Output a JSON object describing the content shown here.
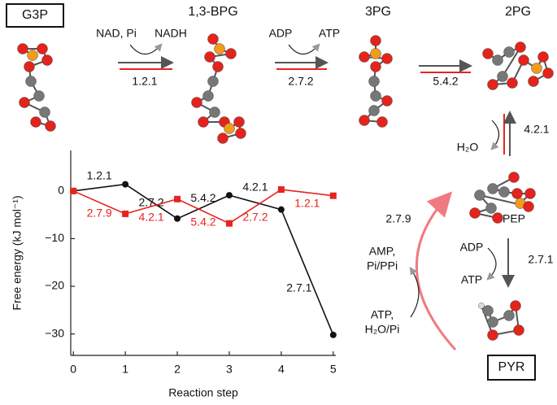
{
  "chart_data": {
    "type": "line",
    "xlabel": "Reaction step",
    "ylabel": "Free energy (kJ mol⁻¹)",
    "x": [
      0,
      1,
      2,
      3,
      4,
      5
    ],
    "series": [
      {
        "color": "#111111",
        "marker": "circle",
        "values": [
          0,
          1.4,
          -5.8,
          -0.9,
          -3.9,
          -30.2
        ],
        "segment_labels": [
          "1.2.1",
          "2.7.2",
          "5.4.2",
          "4.2.1",
          "2.7.1"
        ]
      },
      {
        "color": "#e8231f",
        "marker": "square",
        "values": [
          0,
          -4.8,
          -1.7,
          -6.8,
          0.3,
          -1.0
        ],
        "segment_labels": [
          "2.7.9",
          "4.2.1",
          "5.4.2",
          "2.7.2",
          "1.2.1"
        ]
      }
    ],
    "xlim": [
      -0.05,
      5.05
    ],
    "ylim": [
      -34.5,
      8.5
    ],
    "xticks": [
      0,
      1,
      2,
      3,
      4,
      5
    ],
    "yticks": [
      0,
      {
        "value": -10,
        "label": "−10"
      },
      {
        "value": -20,
        "label": "−20"
      },
      {
        "value": -30,
        "label": "−30"
      }
    ]
  },
  "diagram": {
    "metabolites": {
      "g3p": "G3P",
      "bpg": "1,3-BPG",
      "pg3": "3PG",
      "pg2": "2PG",
      "pep": "PEP",
      "pyr": "PYR"
    },
    "reactions": {
      "r1": {
        "enzyme": "1.2.1",
        "in": "NAD, Pi",
        "out": "NADH"
      },
      "r2": {
        "enzyme": "2.7.2",
        "in": "ADP",
        "out": "ATP"
      },
      "r3": {
        "enzyme": "5.4.2"
      },
      "r4": {
        "enzyme": "4.2.1",
        "out": "H₂O"
      },
      "r5": {
        "enzyme": "2.7.1",
        "in": "ADP",
        "out": "ATP"
      },
      "r6": {
        "enzyme": "2.7.9",
        "in": [
          "ATP,",
          "H₂O/Pi"
        ],
        "out": [
          "AMP,",
          "Pi/PPi"
        ]
      }
    }
  }
}
